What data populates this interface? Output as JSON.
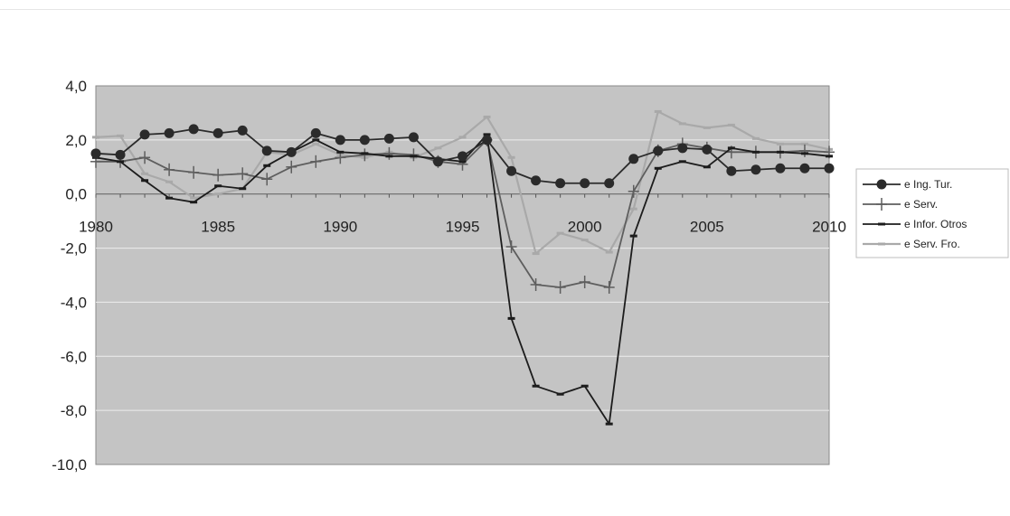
{
  "chart_data": {
    "type": "line",
    "title": "",
    "xlabel": "",
    "ylabel": "",
    "x": [
      1980,
      1981,
      1982,
      1983,
      1984,
      1985,
      1986,
      1987,
      1988,
      1989,
      1990,
      1991,
      1992,
      1993,
      1994,
      1995,
      1996,
      1997,
      1998,
      1999,
      2000,
      2001,
      2002,
      2003,
      2004,
      2005,
      2006,
      2007,
      2008,
      2009,
      2010
    ],
    "xlim": [
      1980,
      2010
    ],
    "ylim": [
      -10,
      4
    ],
    "x_ticks": [
      "1980",
      "1985",
      "1990",
      "1995",
      "2000",
      "2005",
      "2010"
    ],
    "y_ticks": [
      "4,0",
      "2,0",
      "0,0",
      "-2,0",
      "-4,0",
      "-6,0",
      "-8,0",
      "-10,0"
    ],
    "y_tick_values": [
      4,
      2,
      0,
      -2,
      -4,
      -6,
      -8,
      -10
    ],
    "grid": "horizontal",
    "plot_background": "#c4c4c4",
    "legend_position": "right",
    "series": [
      {
        "name": "e Ing. Tur.",
        "marker": "circle",
        "color": "#2b2b2b",
        "values": [
          1.5,
          1.45,
          2.2,
          2.25,
          2.4,
          2.25,
          2.35,
          1.6,
          1.55,
          2.25,
          2.0,
          2.0,
          2.05,
          2.1,
          1.2,
          1.4,
          2.0,
          0.85,
          0.5,
          0.4,
          0.4,
          0.4,
          1.3,
          1.6,
          1.7,
          1.65,
          0.85,
          0.9,
          0.95,
          0.95,
          0.95
        ]
      },
      {
        "name": "e Serv.",
        "marker": "plus",
        "color": "#5e5e5e",
        "values": [
          1.2,
          1.2,
          1.35,
          0.9,
          0.8,
          0.7,
          0.75,
          0.55,
          1.0,
          1.2,
          1.35,
          1.45,
          1.5,
          1.45,
          1.2,
          1.1,
          2.0,
          -1.95,
          -3.35,
          -3.45,
          -3.25,
          -3.45,
          0.1,
          1.6,
          1.85,
          1.7,
          1.55,
          1.55,
          1.55,
          1.6,
          1.55
        ]
      },
      {
        "name": "e Infor. Otros",
        "marker": "dash",
        "color": "#1c1c1c",
        "values": [
          1.35,
          1.2,
          0.5,
          -0.15,
          -0.3,
          0.3,
          0.2,
          1.05,
          1.55,
          2.0,
          1.55,
          1.5,
          1.4,
          1.4,
          1.3,
          1.2,
          2.2,
          -4.6,
          -7.1,
          -7.4,
          -7.1,
          -8.5,
          -1.55,
          0.95,
          1.2,
          1.0,
          1.7,
          1.55,
          1.55,
          1.5,
          1.4
        ]
      },
      {
        "name": "e Serv. Fro.",
        "marker": "dash",
        "color": "#a9a9a9",
        "values": [
          2.1,
          2.15,
          0.75,
          0.45,
          -0.15,
          0.0,
          0.2,
          1.55,
          1.45,
          1.85,
          1.45,
          1.35,
          1.55,
          1.35,
          1.7,
          2.1,
          2.85,
          1.35,
          -2.2,
          -1.45,
          -1.7,
          -2.15,
          -0.55,
          3.05,
          2.6,
          2.45,
          2.55,
          2.05,
          1.85,
          1.85,
          1.65
        ]
      }
    ]
  }
}
